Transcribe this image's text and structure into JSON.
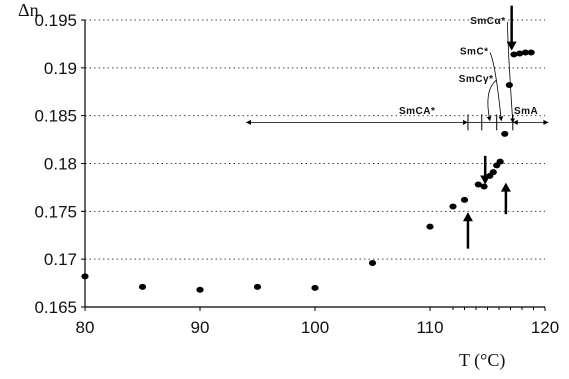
{
  "chart_data": {
    "type": "scatter",
    "title": "",
    "xlabel": "T (°C)",
    "ylabel": "Δn",
    "xlim": [
      80,
      120
    ],
    "ylim": [
      0.165,
      0.195
    ],
    "x_ticks": [
      "80",
      "90",
      "100",
      "110",
      "120"
    ],
    "y_ticks": [
      "0.165",
      "0.17",
      "0.175",
      "0.18",
      "0.185",
      "0.19",
      "0.195"
    ],
    "grid": "horizontal dotted",
    "series": [
      {
        "points": [
          {
            "x": 80,
            "y": 0.1682
          },
          {
            "x": 85,
            "y": 0.1671
          },
          {
            "x": 90,
            "y": 0.1668
          },
          {
            "x": 95,
            "y": 0.1671
          },
          {
            "x": 100,
            "y": 0.167
          },
          {
            "x": 105,
            "y": 0.1696
          },
          {
            "x": 110,
            "y": 0.1734
          },
          {
            "x": 112,
            "y": 0.1755
          },
          {
            "x": 113,
            "y": 0.1762
          },
          {
            "x": 114.2,
            "y": 0.1778
          },
          {
            "x": 114.7,
            "y": 0.1776
          },
          {
            "x": 115.2,
            "y": 0.1787
          },
          {
            "x": 115.5,
            "y": 0.1791
          },
          {
            "x": 115.8,
            "y": 0.1798
          },
          {
            "x": 116.1,
            "y": 0.1802
          },
          {
            "x": 116.5,
            "y": 0.1831
          },
          {
            "x": 116.9,
            "y": 0.1882
          },
          {
            "x": 117.3,
            "y": 0.1914
          },
          {
            "x": 117.8,
            "y": 0.1915
          },
          {
            "x": 118.3,
            "y": 0.1916
          },
          {
            "x": 118.8,
            "y": 0.1916
          }
        ],
        "color": "#000000"
      }
    ],
    "phases": [
      {
        "label": "SmCA*",
        "x_from": 94,
        "x_to": 113.3,
        "y": 0.1843,
        "label_x": 107.3,
        "label_y": 0.1856
      },
      {
        "label": "SmA",
        "x_from": 117.2,
        "x_to": 120.3,
        "y": 0.1843,
        "label_x": 117.3,
        "label_y": 0.1856
      }
    ],
    "phase_boundaries": [
      113.3,
      114.5,
      115.8,
      117.2
    ],
    "annotations": [
      {
        "label": "SmCα*",
        "label_x": 113.5,
        "label_y": 0.1946,
        "target_x": 117.2,
        "target_y": 0.1843
      },
      {
        "label": "SmC*",
        "label_x": 112.6,
        "label_y": 0.1914,
        "target_x": 116.2,
        "target_y": 0.1845
      },
      {
        "label": "SmCγ*",
        "label_x": 112.5,
        "label_y": 0.1885,
        "target_x": 115.2,
        "target_y": 0.1845
      }
    ],
    "arrows": [
      {
        "x": 113.3,
        "y_from": 0.1711,
        "y_to": 0.1749
      },
      {
        "x": 114.8,
        "y_from": 0.1808,
        "y_to": 0.1778
      },
      {
        "x": 116.6,
        "y_from": 0.1747,
        "y_to": 0.178
      },
      {
        "x": 117.1,
        "y_from": 0.1965,
        "y_to": 0.1918
      }
    ]
  }
}
